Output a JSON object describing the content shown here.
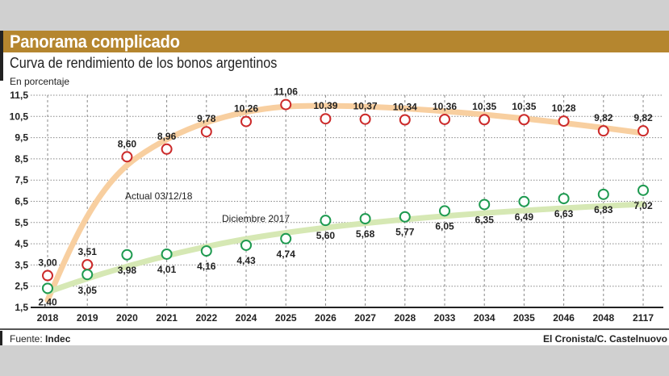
{
  "header": {
    "title": "Panorama complicado",
    "subtitle": "Curva de rendimiento de los bonos argentinos",
    "unit": "En porcentaje"
  },
  "footer": {
    "source_label": "Fuente:",
    "source": "Indec",
    "credit": "El Cronista/C. Castelnuovo"
  },
  "colors": {
    "header_bar": "#b5862f",
    "actual_marker": "#cc2a2a",
    "actual_trend": "#f8cfa0",
    "dec2017_marker": "#1e9a50",
    "dec2017_trend": "#d6e8b4"
  },
  "chart_data": {
    "type": "scatter",
    "title": "Curva de rendimiento de los bonos argentinos",
    "ylabel": "En porcentaje",
    "categories": [
      "2018",
      "2019",
      "2020",
      "2021",
      "2022",
      "2024",
      "2025",
      "2026",
      "2027",
      "2028",
      "2033",
      "2034",
      "2035",
      "2046",
      "2048",
      "2117"
    ],
    "yticks": [
      "1,5",
      "2,5",
      "3,5",
      "4,5",
      "5,5",
      "6,5",
      "7,5",
      "8,5",
      "9,5",
      "10,5",
      "11,5"
    ],
    "ylim": [
      1.5,
      11.5
    ],
    "grid": true,
    "series": [
      {
        "name": "Actual 03/12/18",
        "values": [
          3.0,
          3.51,
          8.6,
          8.96,
          9.78,
          10.26,
          11.06,
          10.39,
          10.37,
          10.34,
          10.36,
          10.35,
          10.35,
          10.28,
          9.82,
          9.82
        ],
        "labels": [
          "3,00",
          "3,51",
          "8,60",
          "8,96",
          "9,78",
          "10,26",
          "11,06",
          "10,39",
          "10,37",
          "10,34",
          "10,36",
          "10,35",
          "10,35",
          "10,28",
          "9,82",
          "9,82"
        ]
      },
      {
        "name": "Diciembre 2017",
        "values": [
          2.4,
          3.05,
          3.98,
          4.01,
          4.16,
          4.43,
          4.74,
          5.6,
          5.68,
          5.77,
          6.05,
          6.35,
          6.49,
          6.63,
          6.83,
          7.02
        ],
        "labels": [
          "2,40",
          "3,05",
          "3,98",
          "4,01",
          "4,16",
          "4,43",
          "4,74",
          "5,60",
          "5,68",
          "5,77",
          "6,05",
          "6,35",
          "6,49",
          "6,63",
          "6,83",
          "7,02"
        ]
      }
    ]
  }
}
